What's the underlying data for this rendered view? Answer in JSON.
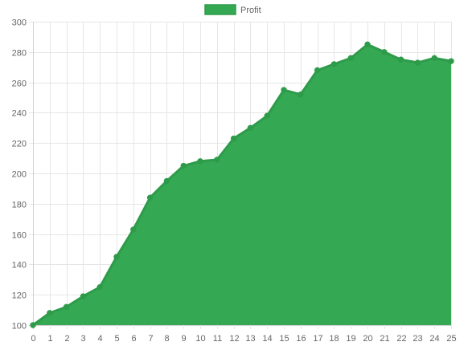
{
  "chart_data": {
    "type": "area",
    "title": "",
    "xlabel": "",
    "ylabel": "",
    "legend": {
      "position": "top-center"
    },
    "grid": true,
    "x": [
      0,
      1,
      2,
      3,
      4,
      5,
      6,
      7,
      8,
      9,
      10,
      11,
      12,
      13,
      14,
      15,
      16,
      17,
      18,
      19,
      20,
      21,
      22,
      23,
      24,
      25
    ],
    "ylim": [
      100,
      300
    ],
    "yticks": [
      100,
      120,
      140,
      160,
      180,
      200,
      220,
      240,
      260,
      280,
      300
    ],
    "series": [
      {
        "name": "Profit",
        "color": "#34a853",
        "values": [
          100,
          108,
          112,
          119,
          125,
          145,
          163,
          184,
          195,
          205,
          208,
          209,
          223,
          230,
          238,
          255,
          252,
          268,
          272,
          276,
          285,
          280,
          275,
          273,
          276,
          274
        ]
      }
    ]
  }
}
